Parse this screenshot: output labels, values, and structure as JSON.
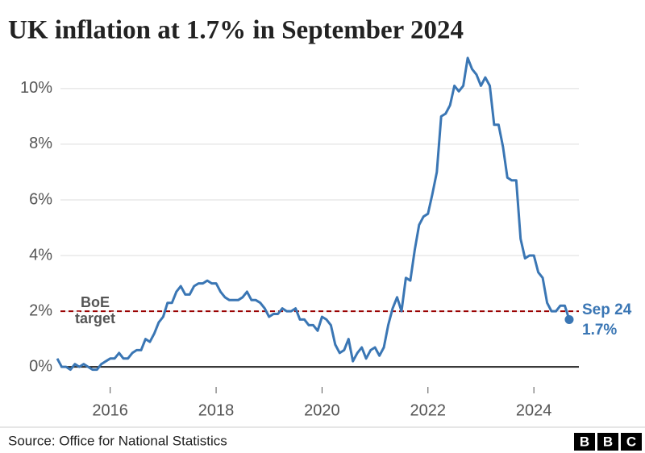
{
  "chart_data": {
    "type": "line",
    "title": "UK inflation at 1.7% in September 2024",
    "source": "Source: Office for National Statistics",
    "logo": [
      "B",
      "B",
      "C"
    ],
    "x": [
      2015.0,
      2015.083,
      2015.167,
      2015.25,
      2015.333,
      2015.417,
      2015.5,
      2015.583,
      2015.667,
      2015.75,
      2015.833,
      2015.917,
      2016.0,
      2016.083,
      2016.167,
      2016.25,
      2016.333,
      2016.417,
      2016.5,
      2016.583,
      2016.667,
      2016.75,
      2016.833,
      2016.917,
      2017.0,
      2017.083,
      2017.167,
      2017.25,
      2017.333,
      2017.417,
      2017.5,
      2017.583,
      2017.667,
      2017.75,
      2017.833,
      2017.917,
      2018.0,
      2018.083,
      2018.167,
      2018.25,
      2018.333,
      2018.417,
      2018.5,
      2018.583,
      2018.667,
      2018.75,
      2018.833,
      2018.917,
      2019.0,
      2019.083,
      2019.167,
      2019.25,
      2019.333,
      2019.417,
      2019.5,
      2019.583,
      2019.667,
      2019.75,
      2019.833,
      2019.917,
      2020.0,
      2020.083,
      2020.167,
      2020.25,
      2020.333,
      2020.417,
      2020.5,
      2020.583,
      2020.667,
      2020.75,
      2020.833,
      2020.917,
      2021.0,
      2021.083,
      2021.167,
      2021.25,
      2021.333,
      2021.417,
      2021.5,
      2021.583,
      2021.667,
      2021.75,
      2021.833,
      2021.917,
      2022.0,
      2022.083,
      2022.167,
      2022.25,
      2022.333,
      2022.417,
      2022.5,
      2022.583,
      2022.667,
      2022.75,
      2022.833,
      2022.917,
      2023.0,
      2023.083,
      2023.167,
      2023.25,
      2023.333,
      2023.417,
      2023.5,
      2023.583,
      2023.667,
      2023.75,
      2023.833,
      2023.917,
      2024.0,
      2024.083,
      2024.167,
      2024.25,
      2024.333,
      2024.417,
      2024.5,
      2024.583,
      2024.667
    ],
    "series": [
      {
        "color": "#3a76b4",
        "values": [
          0.3,
          0.0,
          0.0,
          -0.1,
          0.1,
          0.0,
          0.1,
          0.0,
          -0.1,
          -0.1,
          0.1,
          0.2,
          0.3,
          0.3,
          0.5,
          0.3,
          0.3,
          0.5,
          0.6,
          0.6,
          1.0,
          0.9,
          1.2,
          1.6,
          1.8,
          2.3,
          2.3,
          2.7,
          2.9,
          2.6,
          2.6,
          2.9,
          3.0,
          3.0,
          3.1,
          3.0,
          3.0,
          2.7,
          2.5,
          2.4,
          2.4,
          2.4,
          2.5,
          2.7,
          2.4,
          2.4,
          2.3,
          2.1,
          1.8,
          1.9,
          1.9,
          2.1,
          2.0,
          2.0,
          2.1,
          1.7,
          1.7,
          1.5,
          1.5,
          1.3,
          1.8,
          1.7,
          1.5,
          0.8,
          0.5,
          0.6,
          1.0,
          0.2,
          0.5,
          0.7,
          0.3,
          0.6,
          0.7,
          0.4,
          0.7,
          1.5,
          2.1,
          2.5,
          2.0,
          3.2,
          3.1,
          4.2,
          5.1,
          5.4,
          5.5,
          6.2,
          7.0,
          9.0,
          9.1,
          9.4,
          10.1,
          9.9,
          10.1,
          11.1,
          10.7,
          10.5,
          10.1,
          10.4,
          10.1,
          8.7,
          8.7,
          7.9,
          6.8,
          6.7,
          6.7,
          4.6,
          3.9,
          4.0,
          4.0,
          3.4,
          3.2,
          2.3,
          2.0,
          2.0,
          2.2,
          2.2,
          1.7
        ]
      }
    ],
    "end_label": {
      "date": "Sep 24",
      "value_label": "1.7%"
    },
    "target": {
      "value": 2,
      "label": [
        "BoE",
        "target"
      ],
      "color": "#990000"
    },
    "xlim": [
      2015,
      2024.85
    ],
    "xticks": [
      2016,
      2018,
      2020,
      2022,
      2024
    ],
    "ylim": [
      -0.72,
      11.3
    ],
    "yticks": [
      {
        "value": 0,
        "label": "0%"
      },
      {
        "value": 2,
        "label": "2%"
      },
      {
        "value": 4,
        "label": "4%"
      },
      {
        "value": 6,
        "label": "6%"
      },
      {
        "value": 8,
        "label": "8%"
      },
      {
        "value": 10,
        "label": "10%"
      }
    ],
    "grid": true
  }
}
